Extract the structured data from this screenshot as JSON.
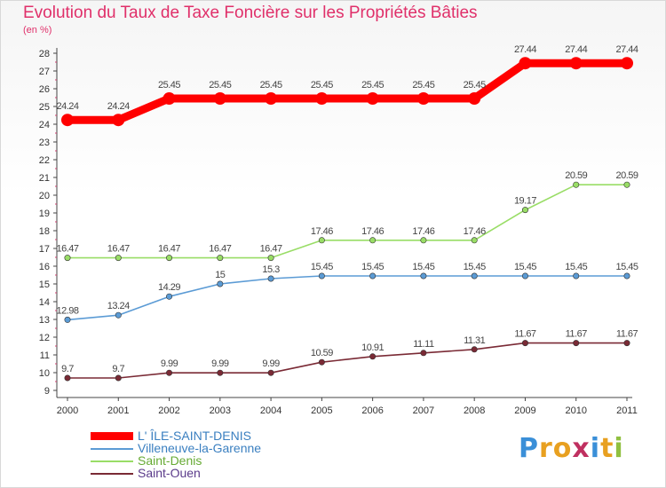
{
  "chart_data": {
    "type": "line",
    "title": "Evolution du Taux de Taxe Foncière sur les Propriétés Bâties",
    "subtitle": "(en %)",
    "x": [
      "2000",
      "2001",
      "2002",
      "2003",
      "2004",
      "2005",
      "2006",
      "2007",
      "2008",
      "2009",
      "2010",
      "2011"
    ],
    "ylim": [
      9,
      28
    ],
    "yticks": [
      "9",
      "10",
      "11",
      "12",
      "13",
      "14",
      "15",
      "16",
      "17",
      "18",
      "19",
      "20",
      "21",
      "22",
      "23",
      "24",
      "25",
      "26",
      "27",
      "28"
    ],
    "grid": false,
    "series": [
      {
        "name": "L' ÎLE-SAINT-DENIS",
        "color": "#ff0000",
        "values": [
          24.24,
          24.24,
          25.45,
          25.45,
          25.45,
          25.45,
          25.45,
          25.45,
          25.45,
          27.44,
          27.44,
          27.44
        ],
        "labels": [
          "24.24",
          "24.24",
          "25.45",
          "25.45",
          "25.45",
          "25.45",
          "25.45",
          "25.45",
          "25.45",
          "27.44",
          "27.44",
          "27.44"
        ]
      },
      {
        "name": "Villeneuve-la-Garenne",
        "color": "#5b9bd5",
        "values": [
          12.98,
          13.24,
          14.29,
          15,
          15.3,
          15.45,
          15.45,
          15.45,
          15.45,
          15.45,
          15.45,
          15.45
        ],
        "labels": [
          "12.98",
          "13.24",
          "14.29",
          "15",
          "15.3",
          "15.45",
          "15.45",
          "15.45",
          "15.45",
          "15.45",
          "15.45",
          "15.45"
        ]
      },
      {
        "name": "Saint-Denis",
        "color": "#99dd66",
        "values": [
          16.47,
          16.47,
          16.47,
          16.47,
          16.47,
          17.46,
          17.46,
          17.46,
          17.46,
          19.17,
          20.59,
          20.59
        ],
        "labels": [
          "16.47",
          "16.47",
          "16.47",
          "16.47",
          "16.47",
          "17.46",
          "17.46",
          "17.46",
          "17.46",
          "19.17",
          "20.59",
          "20.59"
        ]
      },
      {
        "name": "Saint-Ouen",
        "color": "#7a2a35",
        "values": [
          9.7,
          9.7,
          9.99,
          9.99,
          9.99,
          10.59,
          10.91,
          11.11,
          11.31,
          11.67,
          11.67,
          11.67
        ],
        "labels": [
          "9.7",
          "9.7",
          "9.99",
          "9.99",
          "9.99",
          "10.59",
          "10.91",
          "11.11",
          "11.31",
          "11.67",
          "11.67",
          "11.67"
        ]
      }
    ],
    "legend": "bottom-left"
  },
  "logo": {
    "letters": [
      "P",
      "r",
      "o",
      "x",
      "i",
      "t",
      "i"
    ],
    "colors": [
      "#3a8fd8",
      "#e8a020",
      "#e8a020",
      "#c03060",
      "#3a8fd8",
      "#e8a020",
      "#90c040"
    ]
  }
}
